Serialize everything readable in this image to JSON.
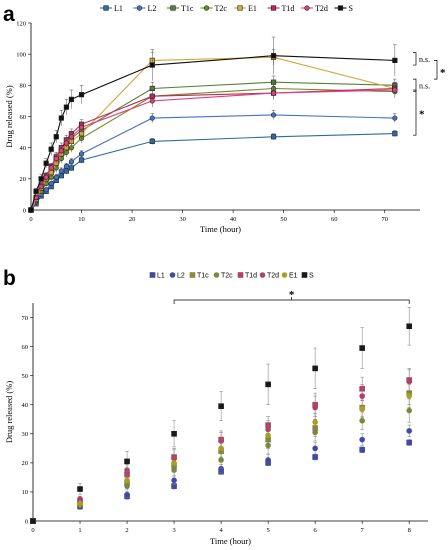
{
  "chart_data": [
    {
      "panel": "a",
      "type": "line",
      "xlabel": "Time (hour)",
      "ylabel": "Drug released (%)",
      "xlim": [
        0,
        75
      ],
      "ylim": [
        0,
        120
      ],
      "xticks": [
        0,
        10,
        20,
        30,
        40,
        50,
        60,
        70
      ],
      "yticks": [
        0,
        20,
        40,
        60,
        80,
        100,
        120
      ],
      "x": [
        0,
        1,
        2,
        3,
        4,
        5,
        6,
        7,
        8,
        10,
        24,
        48,
        72
      ],
      "legend_position": "top",
      "series": [
        {
          "name": "L1",
          "color": "#2e6ca4",
          "marker": "square",
          "values": [
            0,
            4,
            9,
            12,
            15,
            19,
            22,
            25,
            27,
            32,
            44,
            47,
            49
          ],
          "errors": [
            0,
            1,
            1,
            1,
            1,
            1,
            1,
            2,
            2,
            2,
            2,
            2,
            2
          ]
        },
        {
          "name": "L2",
          "color": "#4472c4",
          "marker": "circle",
          "values": [
            0,
            5,
            10,
            13,
            17,
            21,
            25,
            28,
            31,
            36,
            59,
            61,
            59
          ],
          "errors": [
            0,
            1,
            1,
            1,
            1,
            2,
            2,
            2,
            2,
            2,
            3,
            3,
            3
          ]
        },
        {
          "name": "T1c",
          "color": "#548235",
          "marker": "square",
          "values": [
            0,
            6,
            14,
            20,
            26,
            33,
            38,
            42,
            46,
            51,
            78,
            82,
            80
          ],
          "errors": [
            0,
            1,
            2,
            2,
            2,
            3,
            3,
            3,
            3,
            3,
            4,
            4,
            4
          ]
        },
        {
          "name": "T2c",
          "color": "#6b8e23",
          "marker": "circle",
          "values": [
            0,
            6,
            12,
            17,
            21,
            27,
            33,
            37,
            40,
            46,
            73,
            78,
            76
          ],
          "errors": [
            0,
            1,
            2,
            2,
            2,
            3,
            3,
            3,
            3,
            3,
            4,
            4,
            4
          ]
        },
        {
          "name": "E1",
          "color": "#d9a43a",
          "marker": "square",
          "values": [
            0,
            7,
            14,
            20,
            24,
            30,
            36,
            40,
            44,
            49,
            96,
            98,
            78
          ],
          "errors": [
            0,
            1,
            2,
            2,
            2,
            3,
            3,
            3,
            3,
            3,
            5,
            5,
            4
          ]
        },
        {
          "name": "T1d",
          "color": "#c0285a",
          "marker": "square",
          "values": [
            0,
            8,
            16,
            22,
            28,
            34,
            40,
            45,
            49,
            55,
            73,
            75,
            78
          ],
          "errors": [
            0,
            1,
            2,
            2,
            2,
            3,
            3,
            3,
            3,
            3,
            4,
            4,
            4
          ]
        },
        {
          "name": "T2d",
          "color": "#e04080",
          "marker": "circle",
          "values": [
            0,
            8,
            15,
            21,
            27,
            33,
            38,
            43,
            47,
            53,
            70,
            75,
            77
          ],
          "errors": [
            0,
            1,
            2,
            2,
            2,
            3,
            3,
            3,
            3,
            3,
            4,
            4,
            4
          ]
        },
        {
          "name": "S",
          "color": "#111111",
          "marker": "square",
          "values": [
            0,
            12,
            20,
            30,
            39,
            47,
            59,
            66,
            71,
            74,
            93,
            99,
            96
          ],
          "errors": [
            0,
            2,
            3,
            3,
            4,
            4,
            5,
            5,
            6,
            6,
            10,
            12,
            10
          ]
        }
      ],
      "annotations": [
        {
          "text": "n.s.",
          "y_from": 93,
          "y_to": 101
        },
        {
          "text": "n.s.",
          "y_from": 76,
          "y_to": 84
        },
        {
          "text": "*",
          "y_from": 84,
          "y_to": 96
        },
        {
          "text": "*",
          "y_from": 48,
          "y_to": 77
        }
      ]
    },
    {
      "panel": "b",
      "type": "scatter",
      "xlabel": "Time (hour)",
      "ylabel": "Drug released (%)",
      "xlim": [
        0,
        8.4
      ],
      "ylim": [
        0,
        75
      ],
      "xticks": [
        0,
        1,
        2,
        3,
        4,
        5,
        6,
        7,
        8
      ],
      "yticks": [
        0,
        10,
        20,
        30,
        40,
        50,
        60,
        70
      ],
      "x": [
        0,
        1,
        2,
        3,
        4,
        5,
        6,
        7,
        8
      ],
      "legend_position": "top",
      "series": [
        {
          "name": "L1",
          "color": "#3f4aa0",
          "marker": "square",
          "values": [
            0,
            5,
            8.5,
            12,
            17,
            20,
            22,
            24.5,
            27
          ],
          "errors": [
            0,
            1,
            1,
            1,
            1,
            1,
            1,
            1,
            1
          ]
        },
        {
          "name": "L2",
          "color": "#3f4aa0",
          "marker": "circle",
          "values": [
            0,
            5,
            9,
            14,
            18,
            21,
            25,
            28,
            31
          ],
          "errors": [
            0,
            1,
            1,
            1.5,
            1.5,
            2,
            2,
            2,
            2
          ]
        },
        {
          "name": "T1c",
          "color": "#8a8a3a",
          "marker": "square",
          "values": [
            0,
            6,
            13,
            19,
            24,
            28,
            32,
            39,
            44
          ],
          "errors": [
            0,
            1,
            2,
            2,
            3,
            3,
            3,
            3,
            4
          ]
        },
        {
          "name": "T2c",
          "color": "#7a8a3a",
          "marker": "circle",
          "values": [
            0,
            5.5,
            12,
            17.5,
            21,
            26,
            30.5,
            34.5,
            38
          ],
          "errors": [
            0,
            1,
            2,
            2,
            3,
            3,
            3,
            3,
            4
          ]
        },
        {
          "name": "T1d",
          "color": "#b0406a",
          "marker": "square",
          "values": [
            0,
            7,
            16,
            22,
            28,
            33,
            40,
            45.5,
            48.5
          ],
          "errors": [
            0,
            1,
            2,
            3,
            3,
            3,
            4,
            4,
            4
          ]
        },
        {
          "name": "T2d",
          "color": "#b0406a",
          "marker": "circle",
          "values": [
            0,
            7.5,
            17.5,
            21.5,
            27.5,
            31.5,
            39,
            43,
            48
          ],
          "errors": [
            0,
            1,
            2,
            3,
            3,
            3,
            4,
            4,
            4
          ]
        },
        {
          "name": "E1",
          "color": "#a8a020",
          "marker": "circle",
          "values": [
            0,
            6,
            14,
            20,
            25,
            29.5,
            34,
            38.5,
            43
          ],
          "errors": [
            0,
            1,
            2,
            2,
            3,
            3,
            3,
            3,
            4
          ]
        },
        {
          "name": "S",
          "color": "#1a1a1a",
          "marker": "square",
          "values": [
            0,
            11,
            20.5,
            30,
            39.5,
            47,
            52.5,
            59.5,
            67
          ],
          "errors": [
            0,
            2,
            3.5,
            4.5,
            5,
            7,
            7,
            7,
            6.5
          ]
        }
      ],
      "annotations": [
        {
          "text": "*",
          "x_from": 3,
          "x_to": 8
        }
      ]
    }
  ]
}
